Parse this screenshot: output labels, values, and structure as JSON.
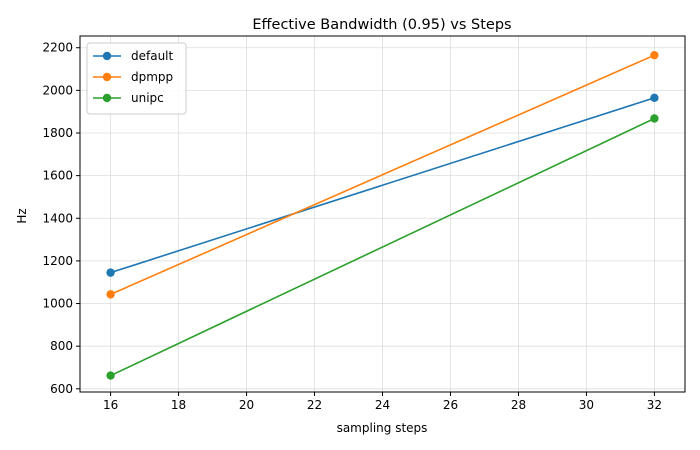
{
  "chart_data": {
    "type": "line",
    "title": "Effective Bandwidth (0.95) vs Steps",
    "xlabel": "sampling steps",
    "ylabel": "Hz",
    "xlim": [
      15.1,
      32.9
    ],
    "ylim": [
      585,
      2255
    ],
    "xticks": [
      16,
      18,
      20,
      22,
      24,
      26,
      28,
      30,
      32
    ],
    "yticks": [
      600,
      800,
      1000,
      1200,
      1400,
      1600,
      1800,
      2000,
      2200
    ],
    "grid": true,
    "legend_position": "top-left",
    "series": [
      {
        "name": "default",
        "color": "#1f77b4",
        "x": [
          16,
          32
        ],
        "y": [
          1145,
          1965
        ]
      },
      {
        "name": "dpmpp",
        "color": "#ff7f0e",
        "x": [
          16,
          32
        ],
        "y": [
          1043,
          2165
        ]
      },
      {
        "name": "unipc",
        "color": "#2ca02c",
        "x": [
          16,
          32
        ],
        "y": [
          662,
          1868
        ]
      }
    ]
  }
}
